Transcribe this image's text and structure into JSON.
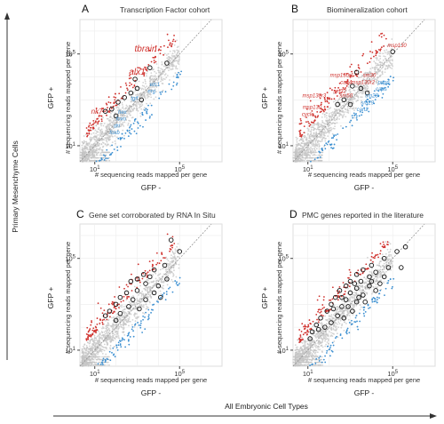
{
  "figure": {
    "y_super_label": "Primary Mesenchyme Cells",
    "x_super_label": "All Embryonic Cell Types"
  },
  "colors": {
    "background_points": "#c4c4c4",
    "up_points": "#d0312d",
    "down_points": "#3b8fd1",
    "circled": "#111111",
    "diagonal": "#888888",
    "grid": "#ececec"
  },
  "chart_data": [
    {
      "type": "scatter",
      "letter": "A",
      "title": "Transcription Factor cohort",
      "xlabel_inner": "# sequencing reads mapped per gene",
      "ylabel_inner": "# sequencing reads mapped per gene",
      "xlabel": "GFP -",
      "ylabel": "GFP +",
      "scale": "log10",
      "xlim": [
        0.3,
        7
      ],
      "ylim": [
        0.3,
        6.5
      ],
      "xticks": [
        {
          "value": 1,
          "label": "10^1"
        },
        {
          "value": 5,
          "label": "10^5"
        }
      ],
      "yticks": [
        {
          "value": 1,
          "label": "10^1"
        },
        {
          "value": 5,
          "label": "10^5"
        }
      ],
      "red_labels": [
        {
          "text": "tbrain",
          "x": 3.4,
          "y": 5.1,
          "size": "large"
        },
        {
          "text": "alx1",
          "x": 3.0,
          "y": 4.1,
          "size": "large"
        },
        {
          "text": "nk7",
          "x": 1.1,
          "y": 2.4,
          "size": "medium"
        }
      ],
      "blue_labels": [
        {
          "text": "ets1",
          "x": 3.6,
          "y": 3.6
        },
        {
          "text": "erg",
          "x": 3.5,
          "y": 3.3
        },
        {
          "text": "tgif",
          "x": 2.7,
          "y": 3.0
        },
        {
          "text": "hex",
          "x": 2.1,
          "y": 2.4
        },
        {
          "text": "foxo",
          "x": 2.0,
          "y": 2.1
        },
        {
          "text": "dri",
          "x": 1.9,
          "y": 1.8
        },
        {
          "text": "foxb",
          "x": 1.7,
          "y": 1.5
        }
      ],
      "circled": [
        [
          1.5,
          2.5
        ],
        [
          1.8,
          2.6
        ],
        [
          2.1,
          2.9
        ],
        [
          2.4,
          3.1
        ],
        [
          2.7,
          3.3
        ],
        [
          3.0,
          3.5
        ],
        [
          2.9,
          3.9
        ],
        [
          3.6,
          4.4
        ],
        [
          4.4,
          4.6
        ],
        [
          3.2,
          3.0
        ],
        [
          2.0,
          2.3
        ]
      ]
    },
    {
      "type": "scatter",
      "letter": "B",
      "title": "Biomineralization cohort",
      "xlabel_inner": "# sequencing reads mapped per gene",
      "ylabel_inner": "# sequencing reads mapped per gene",
      "xlabel": "GFP -",
      "ylabel": "GFP +",
      "scale": "log10",
      "xlim": [
        0.3,
        7
      ],
      "ylim": [
        0.3,
        6.5
      ],
      "xticks": [
        {
          "value": 1,
          "label": "10^1"
        },
        {
          "value": 5,
          "label": "10^5"
        }
      ],
      "yticks": [
        {
          "value": 1,
          "label": "10^1"
        },
        {
          "value": 5,
          "label": "10^5"
        }
      ],
      "red_labels": [
        {
          "text": "msp130",
          "x": 5.2,
          "y": 5.3
        },
        {
          "text": "sm30",
          "x": 3.9,
          "y": 4.0
        },
        {
          "text": "msp130r1",
          "x": 2.6,
          "y": 4.0
        },
        {
          "text": "can4",
          "x": 2.8,
          "y": 3.7
        },
        {
          "text": "msp130r2",
          "x": 3.6,
          "y": 3.7
        },
        {
          "text": "sm32",
          "x": 2.5,
          "y": 3.3
        },
        {
          "text": "msp130r3",
          "x": 1.3,
          "y": 3.1
        },
        {
          "text": "sm50",
          "x": 2.8,
          "y": 3.1
        },
        {
          "text": "msp130",
          "x": 1.2,
          "y": 2.6
        },
        {
          "text": "cyclo",
          "x": 1.0,
          "y": 2.3
        }
      ],
      "blue_labels": [
        {
          "text": "pspp",
          "x": 4.3,
          "y": 3.7
        },
        {
          "text": "caps",
          "x": 4.2,
          "y": 3.4
        },
        {
          "text": "sm28",
          "x": 3.7,
          "y": 3.1
        },
        {
          "text": "sm29",
          "x": 3.5,
          "y": 2.8
        },
        {
          "text": "can2",
          "x": 3.3,
          "y": 2.5
        }
      ],
      "circled": [
        [
          5.0,
          5.1
        ],
        [
          3.3,
          4.2
        ],
        [
          3.1,
          3.6
        ],
        [
          3.5,
          3.5
        ],
        [
          3.8,
          3.3
        ],
        [
          2.7,
          3.0
        ],
        [
          3.0,
          2.8
        ],
        [
          2.4,
          2.8
        ]
      ]
    },
    {
      "type": "scatter",
      "letter": "C",
      "title": "Gene set corroborated by RNA In Situ",
      "xlabel_inner": "# sequencing reads mapped per gene",
      "ylabel_inner": "# sequencing reads mapped per gene",
      "xlabel": "GFP -",
      "ylabel": "GFP +",
      "scale": "log10",
      "xlim": [
        0.3,
        7
      ],
      "ylim": [
        0.3,
        6.5
      ],
      "xticks": [
        {
          "value": 1,
          "label": "10^1"
        },
        {
          "value": 5,
          "label": "10^5"
        }
      ],
      "yticks": [
        {
          "value": 1,
          "label": "10^1"
        },
        {
          "value": 5,
          "label": "10^5"
        }
      ],
      "red_labels": [],
      "blue_labels": [],
      "circled": [
        [
          4.6,
          5.8
        ],
        [
          5.0,
          5.3
        ],
        [
          4.3,
          4.7
        ],
        [
          3.8,
          4.5
        ],
        [
          3.3,
          4.3
        ],
        [
          3.0,
          4.1
        ],
        [
          2.7,
          4.0
        ],
        [
          3.4,
          3.9
        ],
        [
          4.0,
          3.8
        ],
        [
          3.0,
          3.6
        ],
        [
          2.5,
          3.5
        ],
        [
          3.8,
          3.5
        ],
        [
          2.2,
          3.3
        ],
        [
          2.8,
          3.2
        ],
        [
          3.4,
          3.2
        ],
        [
          4.1,
          3.3
        ],
        [
          2.0,
          3.0
        ],
        [
          2.6,
          2.9
        ],
        [
          3.1,
          2.8
        ],
        [
          1.7,
          2.7
        ],
        [
          2.2,
          2.6
        ],
        [
          1.5,
          2.5
        ],
        [
          2.0,
          2.3
        ],
        [
          3.6,
          4.2
        ],
        [
          4.4,
          4.1
        ]
      ]
    },
    {
      "type": "scatter",
      "letter": "D",
      "title": "PMC genes reported in the literature",
      "xlabel_inner": "# sequencing reads mapped per gene",
      "ylabel_inner": "# sequencing reads mapped per gene",
      "xlabel": "GFP -",
      "ylabel": "GFP +",
      "scale": "log10",
      "xlim": [
        0.3,
        7
      ],
      "ylim": [
        0.3,
        6.5
      ],
      "xticks": [
        {
          "value": 1,
          "label": "10^1"
        },
        {
          "value": 5,
          "label": "10^5"
        }
      ],
      "yticks": [
        {
          "value": 1,
          "label": "10^1"
        },
        {
          "value": 5,
          "label": "10^5"
        }
      ],
      "red_labels": [],
      "blue_labels": [],
      "circled": [
        [
          5.2,
          5.3
        ],
        [
          4.6,
          5.0
        ],
        [
          5.4,
          4.6
        ],
        [
          4.0,
          4.7
        ],
        [
          3.6,
          4.5
        ],
        [
          4.2,
          4.4
        ],
        [
          3.3,
          4.3
        ],
        [
          3.9,
          4.2
        ],
        [
          4.6,
          4.2
        ],
        [
          3.0,
          4.0
        ],
        [
          3.5,
          4.0
        ],
        [
          2.8,
          3.8
        ],
        [
          3.3,
          3.7
        ],
        [
          3.9,
          3.8
        ],
        [
          2.5,
          3.6
        ],
        [
          3.0,
          3.5
        ],
        [
          3.6,
          3.4
        ],
        [
          4.2,
          3.6
        ],
        [
          2.3,
          3.3
        ],
        [
          2.8,
          3.2
        ],
        [
          3.3,
          3.1
        ],
        [
          2.1,
          3.0
        ],
        [
          2.6,
          2.9
        ],
        [
          3.1,
          2.7
        ],
        [
          1.9,
          2.7
        ],
        [
          2.4,
          2.5
        ],
        [
          1.6,
          2.4
        ],
        [
          2.1,
          2.2
        ],
        [
          1.4,
          2.1
        ],
        [
          1.2,
          1.8
        ],
        [
          2.7,
          2.4
        ],
        [
          3.7,
          3.1
        ],
        [
          4.4,
          3.9
        ],
        [
          5.6,
          5.5
        ],
        [
          1.8,
          2.0
        ],
        [
          2.9,
          2.9
        ],
        [
          3.4,
          3.3
        ],
        [
          2.2,
          2.8
        ],
        [
          4.8,
          4.6
        ],
        [
          1.5,
          1.9
        ],
        [
          3.2,
          3.9
        ],
        [
          2.6,
          3.3
        ],
        [
          4.0,
          4.0
        ],
        [
          1.1,
          1.5
        ]
      ]
    }
  ]
}
